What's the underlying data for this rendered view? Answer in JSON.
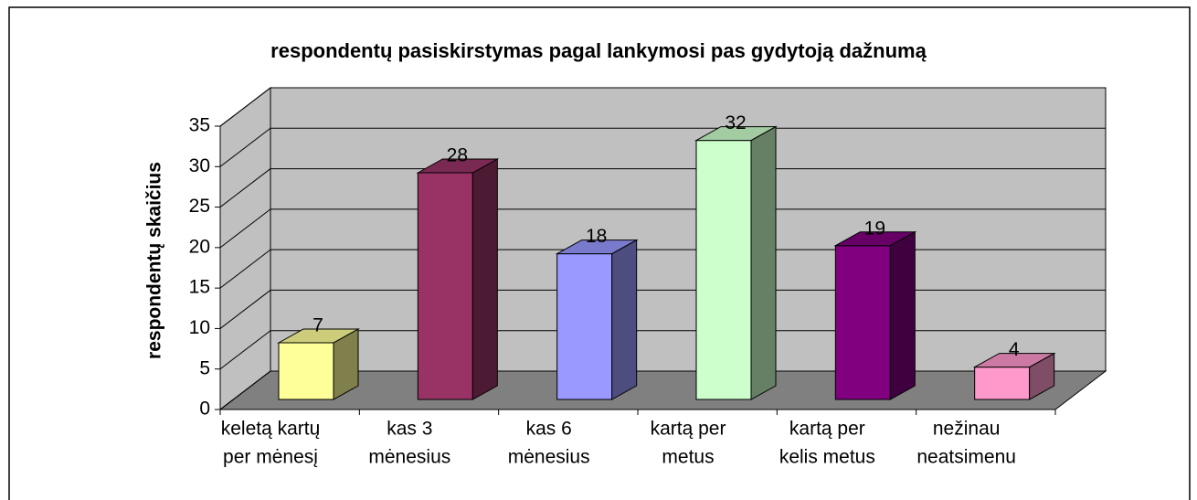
{
  "chart_data": {
    "type": "bar3d",
    "title": "respondentų pasiskirstymas pagal lankymosi pas gydytoją dažnumą",
    "y_label": "respondentų skaičius",
    "categories": [
      [
        "keletą kartų",
        "per mėnesį"
      ],
      [
        "kas 3",
        "mėnesius"
      ],
      [
        "kas 6",
        "mėnesius"
      ],
      [
        "kartą per",
        "metus"
      ],
      [
        "kartą per",
        "kelis metus"
      ],
      [
        "nežinau",
        "neatsimenu"
      ]
    ],
    "values": [
      7,
      28,
      18,
      32,
      19,
      4
    ],
    "colors": [
      "#ffff99",
      "#993366",
      "#9999ff",
      "#ccffcc",
      "#800080",
      "#ff99cc"
    ],
    "ylim": [
      0,
      35
    ],
    "yticks": [
      0,
      5,
      10,
      15,
      20,
      25,
      30,
      35
    ],
    "grid": true
  }
}
